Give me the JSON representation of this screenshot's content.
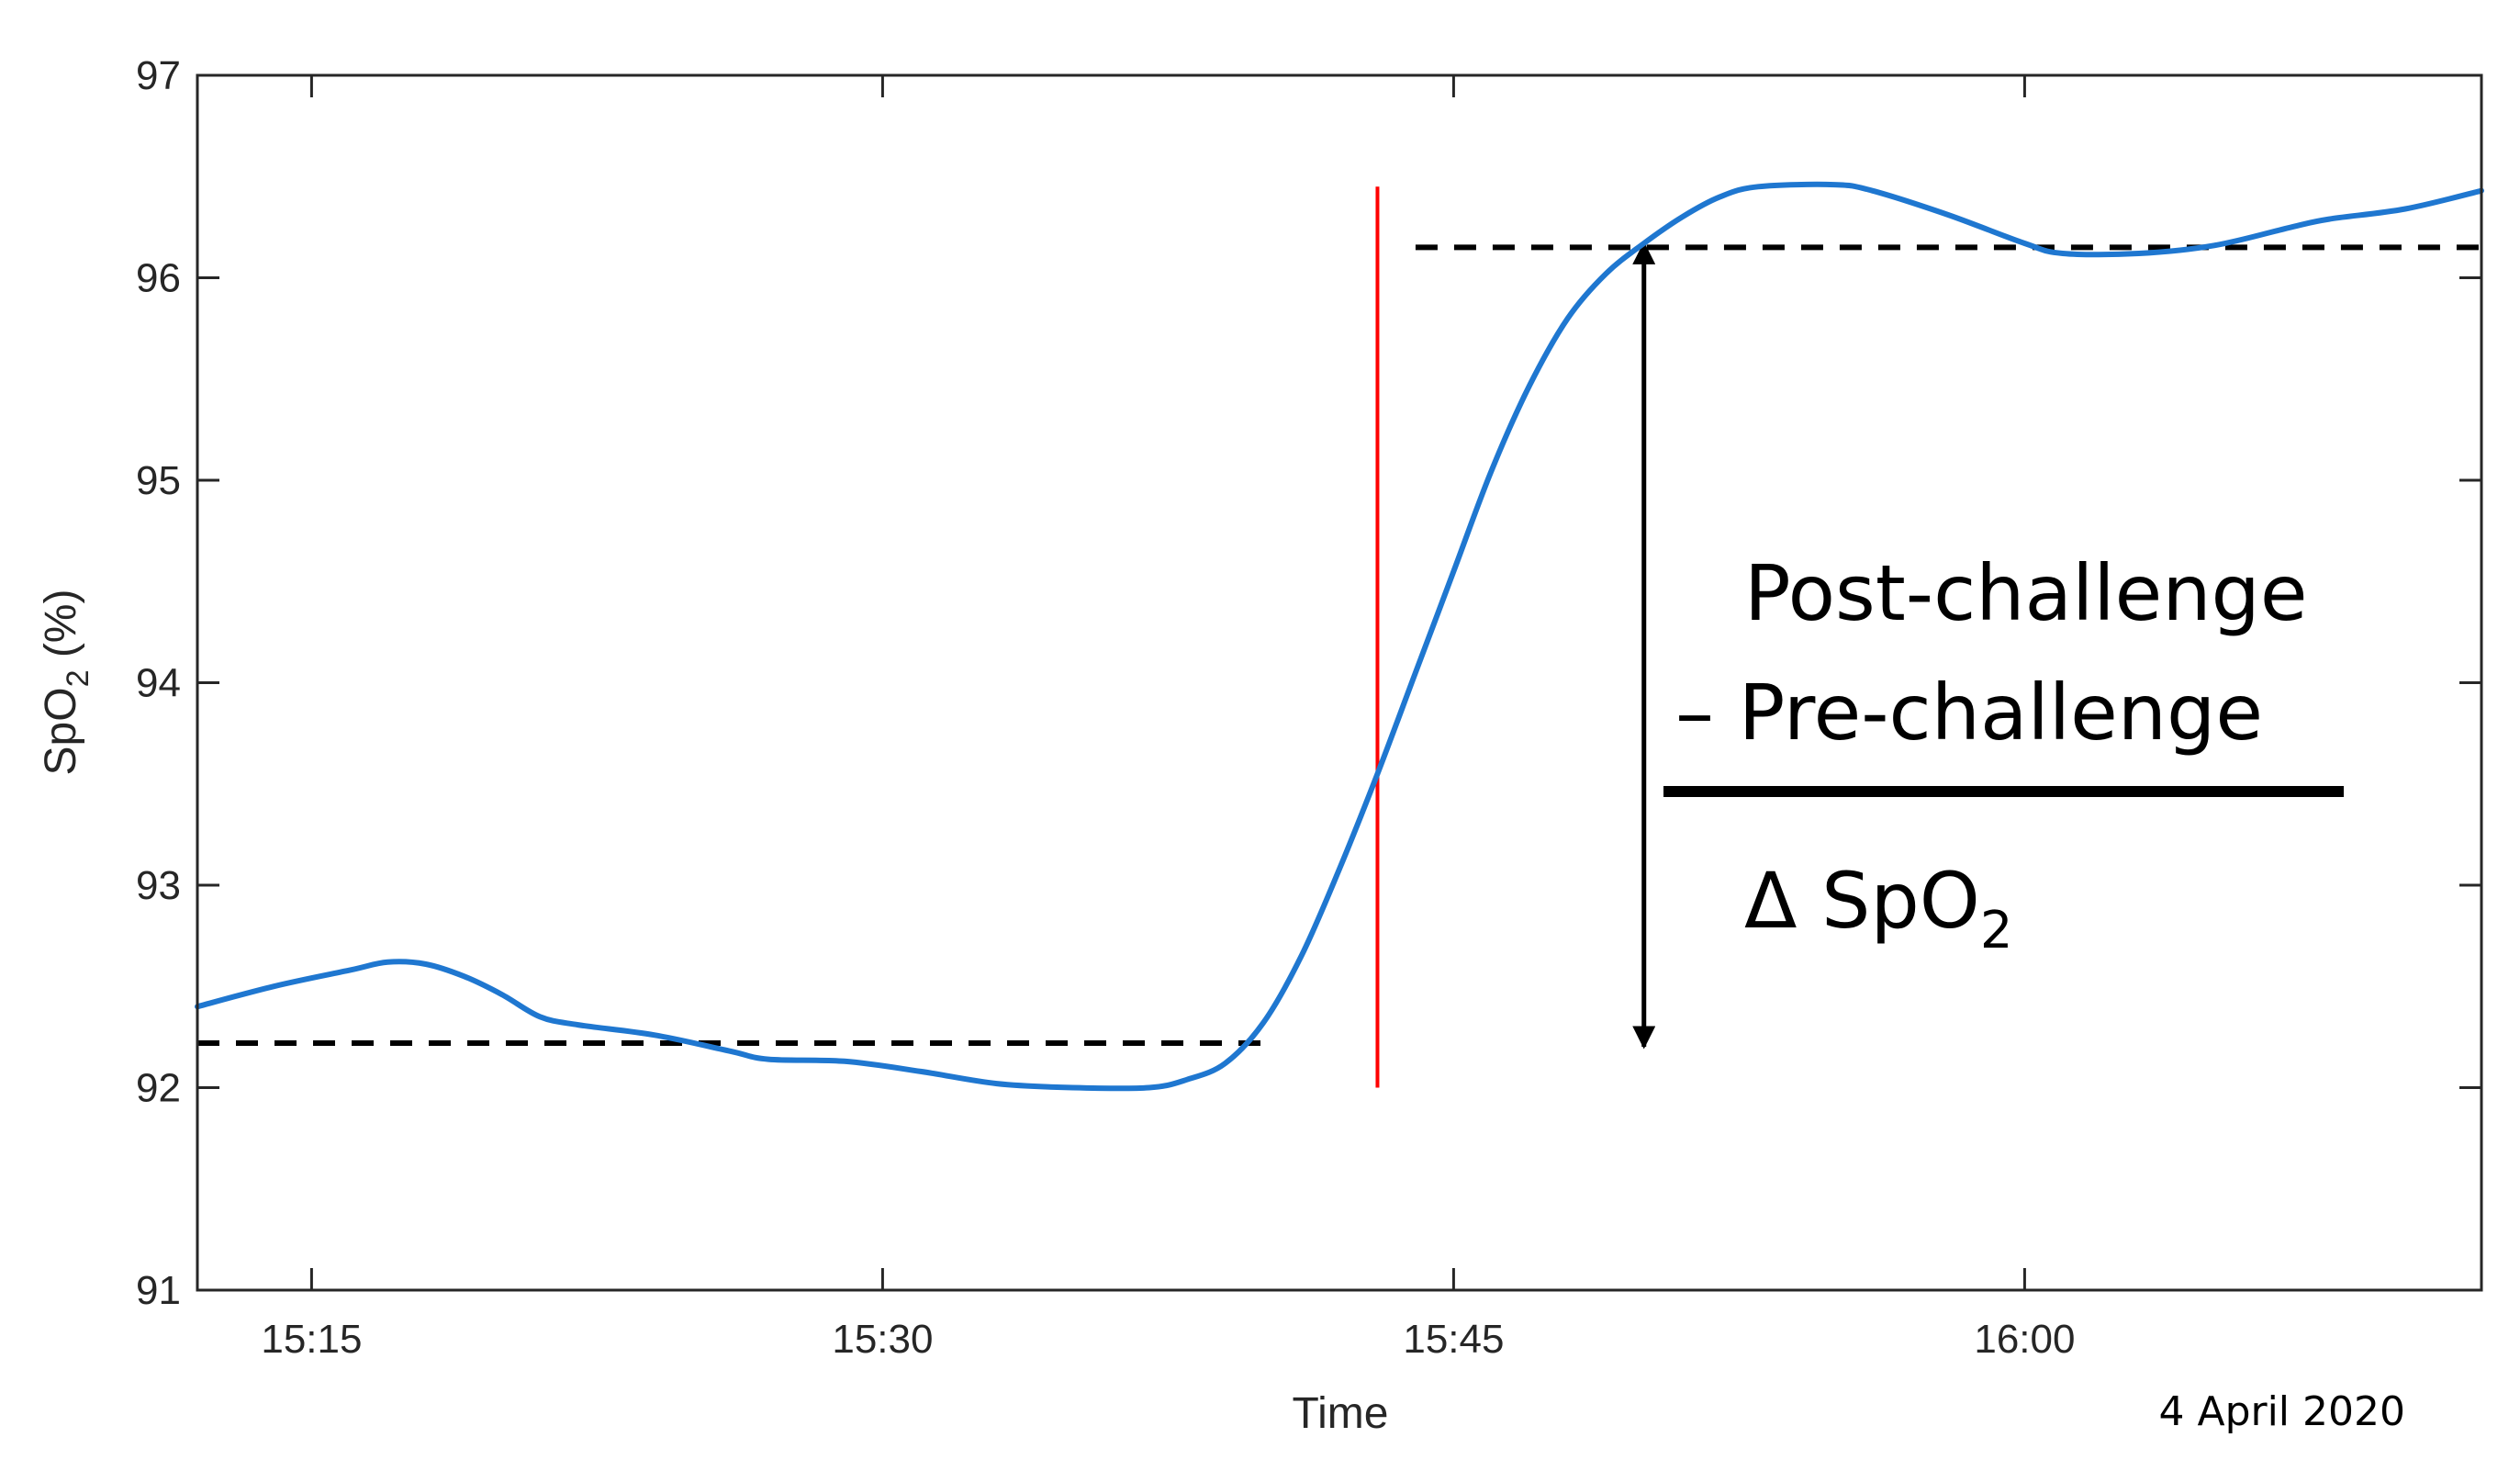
{
  "chart_data": {
    "type": "line",
    "xlabel": "Time",
    "ylabel": {
      "main": "SpO",
      "sub": "2",
      "unit": " (%)"
    },
    "date_label": "4 April 2020",
    "ylim": [
      91,
      97
    ],
    "xlim": [
      "15:12",
      "16:12"
    ],
    "x_ticks": [
      "15:15",
      "15:30",
      "15:45",
      "16:00"
    ],
    "y_ticks": [
      "91",
      "92",
      "93",
      "94",
      "95",
      "96",
      "97"
    ],
    "grid": false,
    "series": [
      {
        "color": "#1f77d0",
        "points": [
          [
            "15:12",
            92.4
          ],
          [
            "15:14",
            92.5
          ],
          [
            "15:16",
            92.58
          ],
          [
            "15:17",
            92.62
          ],
          [
            "15:18",
            92.61
          ],
          [
            "15:19",
            92.55
          ],
          [
            "15:20",
            92.46
          ],
          [
            "15:21",
            92.35
          ],
          [
            "15:22",
            92.31
          ],
          [
            "15:24",
            92.26
          ],
          [
            "15:26",
            92.18
          ],
          [
            "15:27",
            92.14
          ],
          [
            "15:29",
            92.13
          ],
          [
            "15:31",
            92.08
          ],
          [
            "15:33",
            92.02
          ],
          [
            "15:35",
            92.0
          ],
          [
            "15:37",
            92.0
          ],
          [
            "15:38",
            92.04
          ],
          [
            "15:39",
            92.12
          ],
          [
            "15:40",
            92.32
          ],
          [
            "15:41",
            92.65
          ],
          [
            "15:42",
            93.08
          ],
          [
            "15:43",
            93.55
          ],
          [
            "15:44",
            94.05
          ],
          [
            "15:45",
            94.55
          ],
          [
            "15:46",
            95.05
          ],
          [
            "15:47",
            95.47
          ],
          [
            "15:48",
            95.8
          ],
          [
            "15:49",
            96.02
          ],
          [
            "15:50",
            96.17
          ],
          [
            "15:51",
            96.3
          ],
          [
            "15:52",
            96.4
          ],
          [
            "15:53",
            96.45
          ],
          [
            "15:55",
            96.46
          ],
          [
            "15:56",
            96.43
          ],
          [
            "15:58",
            96.31
          ],
          [
            "16:00",
            96.17
          ],
          [
            "16:01",
            96.12
          ],
          [
            "16:03",
            96.12
          ],
          [
            "16:05",
            96.16
          ],
          [
            "16:07",
            96.25
          ],
          [
            "16:08",
            96.29
          ],
          [
            "16:10",
            96.34
          ],
          [
            "16:12",
            96.43
          ]
        ]
      }
    ],
    "reference_lines": [
      {
        "kind": "vertical",
        "x": "15:43",
        "y_range": [
          92.0,
          96.45
        ],
        "color": "#ff0000"
      },
      {
        "kind": "horizontal-dashed",
        "y": 92.22,
        "x_range": [
          "15:12",
          "15:40"
        ],
        "color": "#000000"
      },
      {
        "kind": "horizontal-dashed",
        "y": 96.15,
        "x_range": [
          "15:44",
          "16:12"
        ],
        "color": "#000000"
      }
    ],
    "delta_arrow": {
      "x": "15:50",
      "y_range": [
        92.22,
        96.15
      ]
    },
    "annotation": {
      "line1": "Post-challenge",
      "line2": "– Pre-challenge",
      "result_main": "Δ SpO",
      "result_sub": "2"
    }
  }
}
